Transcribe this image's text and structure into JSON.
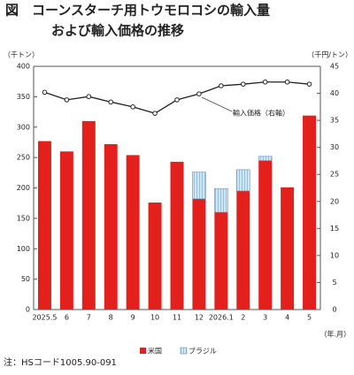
{
  "chart_data": {
    "type": "bar",
    "stacked": true,
    "title": "図　コーンスターチ用トウモロコシの輸入量",
    "subtitle": "および輸入価格の推移",
    "y_label": "（千トン）",
    "y2_label": "（千円/トン）",
    "x_label": "（年.月）",
    "note": "注：HSコード1005.90-091",
    "categories": [
      "2025.5",
      "6",
      "7",
      "8",
      "9",
      "10",
      "11",
      "12",
      "2026.1",
      "2",
      "3",
      "4",
      "5"
    ],
    "series": [
      {
        "name": "米国",
        "color": "#e3201b",
        "values": [
          277,
          260,
          310,
          272,
          254,
          176,
          243,
          182,
          160,
          195,
          245,
          201,
          319
        ]
      },
      {
        "name": "ブラジル",
        "color": "#cfe6f5",
        "values": [
          0,
          0,
          0,
          0,
          0,
          0,
          0,
          44,
          39,
          35,
          7,
          0,
          0
        ]
      },
      {
        "name": "輸入価格（右軸）",
        "color": "#222222",
        "axis": "y2",
        "values": [
          40.2,
          38.8,
          39.4,
          38.4,
          37.5,
          36.3,
          38.8,
          39.9,
          41.4,
          41.7,
          42.1,
          42.1,
          41.7
        ]
      }
    ],
    "ylim": [
      0,
      400
    ],
    "yticks": [
      0,
      50,
      100,
      150,
      200,
      250,
      300,
      350,
      400
    ],
    "y2lim": [
      0,
      45
    ],
    "y2ticks": [
      0,
      5,
      10,
      15,
      20,
      25,
      30,
      35,
      40,
      45
    ],
    "grid": false
  }
}
